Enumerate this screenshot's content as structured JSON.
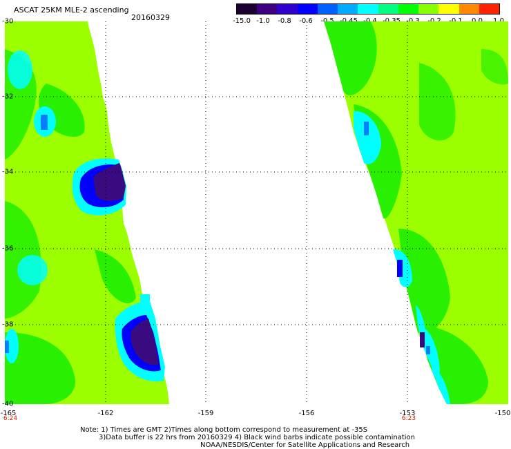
{
  "title": "ASCAT 25KM MLE-2 ascending",
  "date": "20160329",
  "colorbar": {
    "labels": [
      "-15.0",
      "-1.0",
      "-0.8",
      "-0.6",
      "-0.5",
      "-0.45",
      "-0.4",
      "-0.35",
      "-0.3",
      "-0.2",
      "-0.1",
      "0.0",
      "1.0"
    ],
    "colors": [
      "#1c0030",
      "#3e0080",
      "#3000cc",
      "#0000ff",
      "#0060ff",
      "#00aaff",
      "#00ffff",
      "#00ff80",
      "#00ff00",
      "#88ff00",
      "#ffff00",
      "#ff8800",
      "#ff2200"
    ]
  },
  "axes": {
    "lat_labels": [
      "-30",
      "-32",
      "-34",
      "-36",
      "-38",
      "-40"
    ],
    "lon_labels": [
      "-165",
      "-162",
      "-159",
      "-156",
      "-153",
      "-150"
    ],
    "time_labels": [
      "6:24",
      "6:23"
    ]
  },
  "notes": [
    "Note: 1) Times are GMT 2)Times along bottom correspond to measurement at -35S",
    "3)Data buffer is 22 hrs from 20160329 4) Black wind barbs indicate possible contamination",
    "NOAA/NESDIS/Center for Satellite Applications and Research"
  ],
  "colors": {
    "background": "#ffffff",
    "low_residual": "#9cff00",
    "mid_residual": "#28f000",
    "high_residual": "#00ffff",
    "extreme_residual": "#3a0a80",
    "time_label": "#cc2200"
  }
}
